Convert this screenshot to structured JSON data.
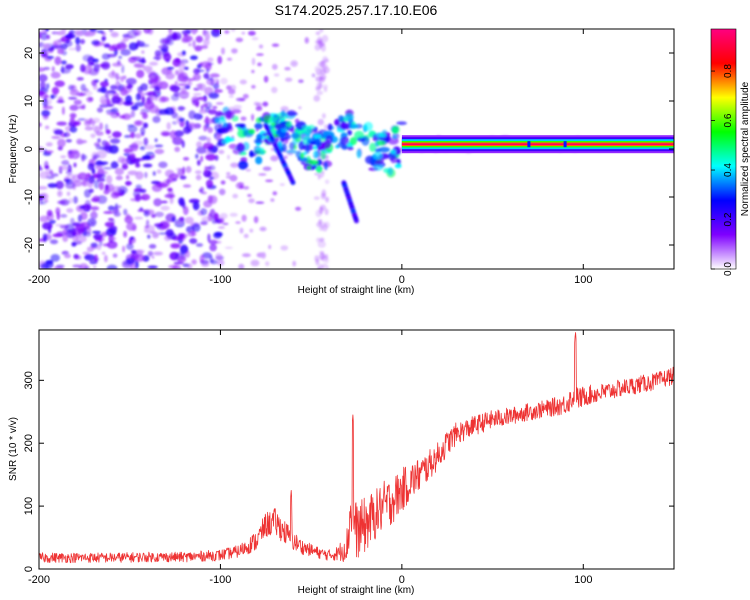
{
  "chart_data": [
    {
      "type": "heatmap",
      "title": "S174.2025.257.17.10.E06",
      "xlabel": "Height of straight line (km)",
      "ylabel": "Frequency (Hz)",
      "xlim": [
        -200,
        150
      ],
      "ylim": [
        -25,
        25
      ],
      "xticks": [
        -200,
        -100,
        0,
        100
      ],
      "xtick_labels": [
        "-200",
        "-100",
        "0",
        "100"
      ],
      "yticks": [
        -20,
        -10,
        0,
        10,
        20
      ],
      "ytick_labels": [
        "-20",
        "-10",
        "0",
        "10",
        "20"
      ],
      "colorbar": {
        "label": "Normalized spectral amplitude",
        "ticks": [
          0.0,
          0.2,
          0.4,
          0.6,
          0.8
        ],
        "tick_labels": [
          "0.0",
          "0.2",
          "0.4",
          "0.6",
          "0.8"
        ],
        "range": [
          0,
          0.97
        ],
        "colormap": [
          "#ffffff",
          "#7f00ff",
          "#0000ff",
          "#00ffff",
          "#00ff00",
          "#ffff00",
          "#ff0000",
          "#ff0080"
        ]
      },
      "features": [
        {
          "name": "noise region",
          "x_range": [
            -200,
            -100
          ],
          "y_range": [
            -25,
            25
          ],
          "amplitude": 0.2
        },
        {
          "name": "transition clusters",
          "x_range": [
            -100,
            0
          ],
          "y_range": [
            -10,
            8
          ],
          "amplitude": 0.4
        },
        {
          "name": "dispersion arm 1",
          "x_start": -75,
          "x_end": -60,
          "y_start": 5,
          "y_end": -7
        },
        {
          "name": "dispersion arm 2",
          "x_start": -32,
          "x_end": -25,
          "y_start": -7,
          "y_end": -15
        },
        {
          "name": "carrier line",
          "x_range": [
            0,
            150
          ],
          "y": 1,
          "amplitude": 0.97
        }
      ]
    },
    {
      "type": "line",
      "xlabel": "Height of straight line (km)",
      "ylabel": "SNR (10 * v/v)",
      "xlim": [
        -200,
        150
      ],
      "ylim": [
        0,
        380
      ],
      "xticks": [
        -200,
        -100,
        0,
        100
      ],
      "xtick_labels": [
        "-200",
        "-100",
        "0",
        "100"
      ],
      "yticks": [
        0,
        100,
        200,
        300
      ],
      "ytick_labels": [
        "0",
        "100",
        "200",
        "300"
      ],
      "color": "#ee3333",
      "series": [
        {
          "name": "SNR",
          "x": [
            -200,
            -180,
            -160,
            -140,
            -120,
            -100,
            -90,
            -80,
            -75,
            -70,
            -65,
            -60,
            -55,
            -50,
            -45,
            -40,
            -35,
            -30,
            -28,
            -25,
            -20,
            -15,
            -10,
            -5,
            0,
            5,
            10,
            15,
            20,
            25,
            30,
            40,
            50,
            60,
            70,
            80,
            90,
            94,
            96,
            98,
            100,
            110,
            120,
            130,
            140,
            150
          ],
          "values": [
            18,
            18,
            18,
            19,
            19,
            22,
            28,
            45,
            70,
            75,
            60,
            45,
            35,
            30,
            25,
            22,
            25,
            40,
            100,
            60,
            70,
            85,
            100,
            110,
            125,
            140,
            150,
            165,
            180,
            200,
            215,
            228,
            238,
            243,
            250,
            255,
            262,
            272,
            275,
            270,
            275,
            280,
            287,
            293,
            298,
            308
          ],
          "noise": [
            8,
            8,
            8,
            8,
            8,
            9,
            10,
            16,
            20,
            22,
            20,
            16,
            12,
            10,
            9,
            9,
            12,
            30,
            50,
            45,
            45,
            40,
            40,
            38,
            35,
            30,
            28,
            24,
            22,
            20,
            18,
            16,
            15,
            14,
            14,
            14,
            16,
            20,
            20,
            18,
            16,
            15,
            14,
            14,
            14,
            14
          ],
          "spikes": [
            {
              "x": -27,
              "value": 245
            },
            {
              "x": -61,
              "value": 125
            },
            {
              "x": 95.7,
              "value": 378
            }
          ]
        }
      ]
    }
  ]
}
